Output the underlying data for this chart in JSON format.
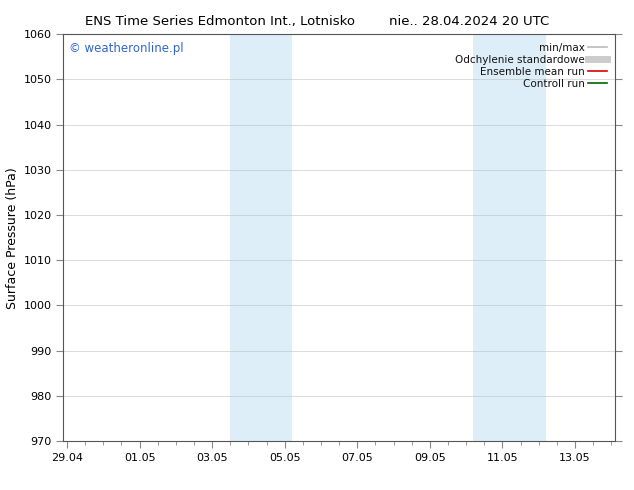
{
  "title_left": "ENS Time Series Edmonton Int., Lotnisko",
  "title_right": "nie.. 28.04.2024 20 UTC",
  "ylabel": "Surface Pressure (hPa)",
  "ylim": [
    970,
    1060
  ],
  "yticks": [
    970,
    980,
    990,
    1000,
    1010,
    1020,
    1030,
    1040,
    1050,
    1060
  ],
  "x_tick_labels": [
    "29.04",
    "01.05",
    "03.05",
    "05.05",
    "07.05",
    "09.05",
    "11.05",
    "13.05"
  ],
  "x_tick_positions": [
    0,
    2,
    4,
    6,
    8,
    10,
    12,
    14
  ],
  "xlim": [
    -0.1,
    15.1
  ],
  "shaded_bands": [
    {
      "xmin": 4.5,
      "xmax": 6.2
    },
    {
      "xmin": 11.2,
      "xmax": 13.2
    }
  ],
  "band_color": "#ddeef8",
  "background_color": "#ffffff",
  "watermark_text": "© weatheronline.pl",
  "watermark_color": "#3366cc",
  "legend_entries": [
    {
      "label": "min/max",
      "color": "#bbbbbb",
      "lw": 1.2,
      "style": "-"
    },
    {
      "label": "Odchylenie standardowe",
      "color": "#cccccc",
      "lw": 5,
      "style": "-"
    },
    {
      "label": "Ensemble mean run",
      "color": "#dd0000",
      "lw": 1.2,
      "style": "-"
    },
    {
      "label": "Controll run",
      "color": "#006600",
      "lw": 1.2,
      "style": "-"
    }
  ],
  "title_fontsize": 9.5,
  "tick_fontsize": 8,
  "ylabel_fontsize": 9,
  "watermark_fontsize": 8.5,
  "legend_fontsize": 7.5,
  "grid_color": "#bbbbbb",
  "grid_alpha": 0.6
}
